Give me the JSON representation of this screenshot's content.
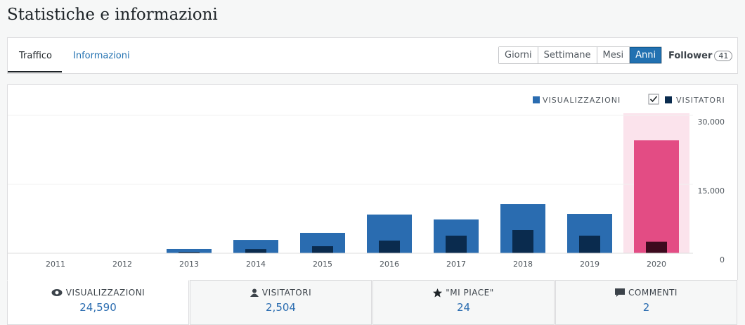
{
  "header": {
    "title": "Statistiche e informazioni"
  },
  "tabs": [
    "Traffico",
    "Informazioni"
  ],
  "periods": [
    "Giorni",
    "Settimane",
    "Mesi",
    "Anni"
  ],
  "active_period": 3,
  "follower": {
    "label": "Follower",
    "count": "41"
  },
  "chart_data": {
    "type": "bar",
    "categories": [
      "2011",
      "2012",
      "2013",
      "2014",
      "2015",
      "2016",
      "2017",
      "2018",
      "2019",
      "2020"
    ],
    "series": [
      {
        "name": "VISUALIZZAZIONI",
        "color": "#2a6cb0",
        "values": [
          0,
          0,
          920,
          2900,
          4440,
          8420,
          7350,
          10710,
          8570,
          24590
        ]
      },
      {
        "name": "VISITATORI",
        "color": "#0a2b4e",
        "values": [
          0,
          0,
          300,
          900,
          1530,
          2760,
          3830,
          5050,
          3830,
          2504
        ]
      }
    ],
    "selected_index": 9,
    "selected_colors": [
      "#e34c84",
      "#3d0a1e"
    ],
    "ylim": [
      0,
      30000
    ],
    "yticks": [
      0,
      {
        "value": 15000,
        "label": "15,000"
      },
      {
        "value": 30000,
        "label": "30,000"
      }
    ],
    "grid": true
  },
  "summary": [
    {
      "label": "VISUALIZZAZIONI",
      "value": "24,590"
    },
    {
      "label": "VISITATORI",
      "value": "2,504"
    },
    {
      "label": "\"MI PIACE\"",
      "value": "24"
    },
    {
      "label": "COMMENTI",
      "value": "2"
    }
  ]
}
